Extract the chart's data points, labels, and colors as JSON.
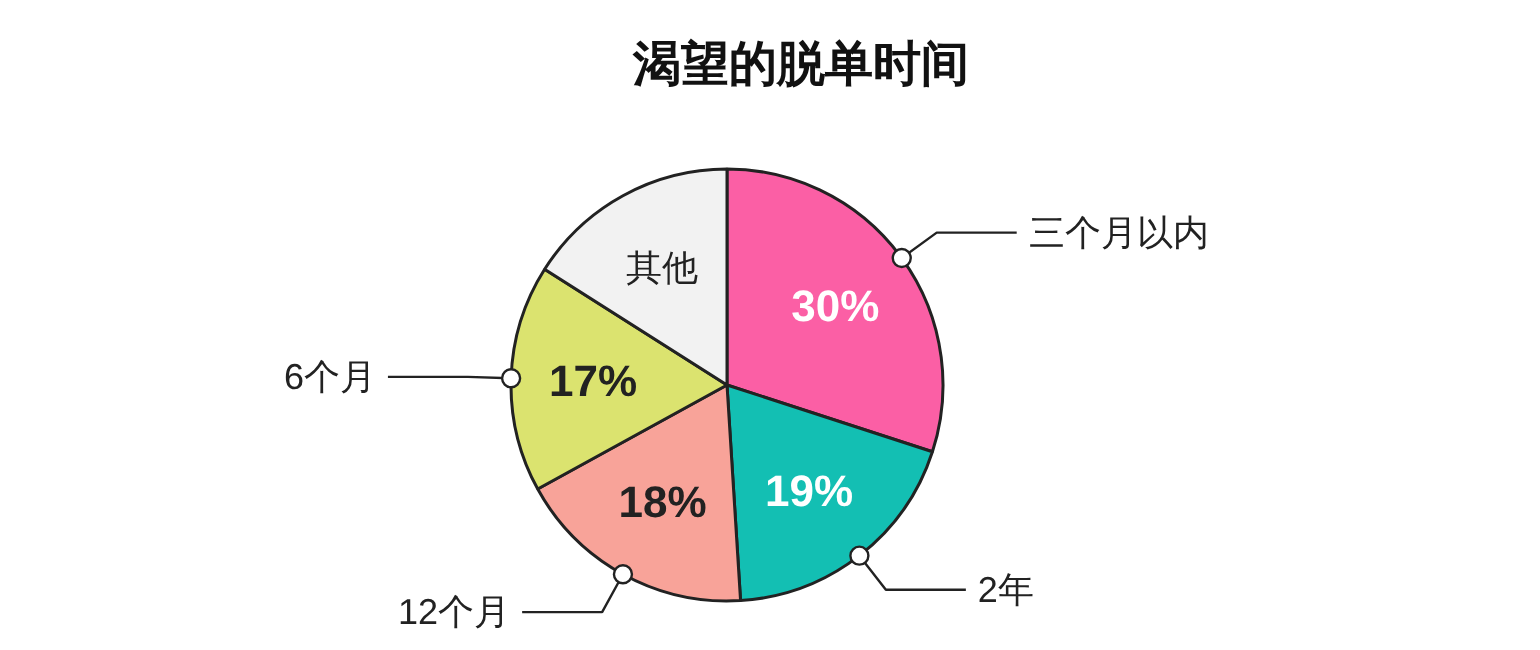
{
  "chart_data": {
    "type": "pie",
    "title": "渴望的脱单时间",
    "categories": [
      "三个月以内",
      "2年",
      "12个月",
      "6个月",
      "其他"
    ],
    "values": [
      30,
      19,
      18,
      17,
      16
    ],
    "colors": [
      "#fb5fa5",
      "#13bfb3",
      "#f8a399",
      "#dbe36f",
      "#f2f2f2"
    ],
    "value_labels": [
      "30%",
      "19%",
      "18%",
      "17%",
      null
    ]
  }
}
